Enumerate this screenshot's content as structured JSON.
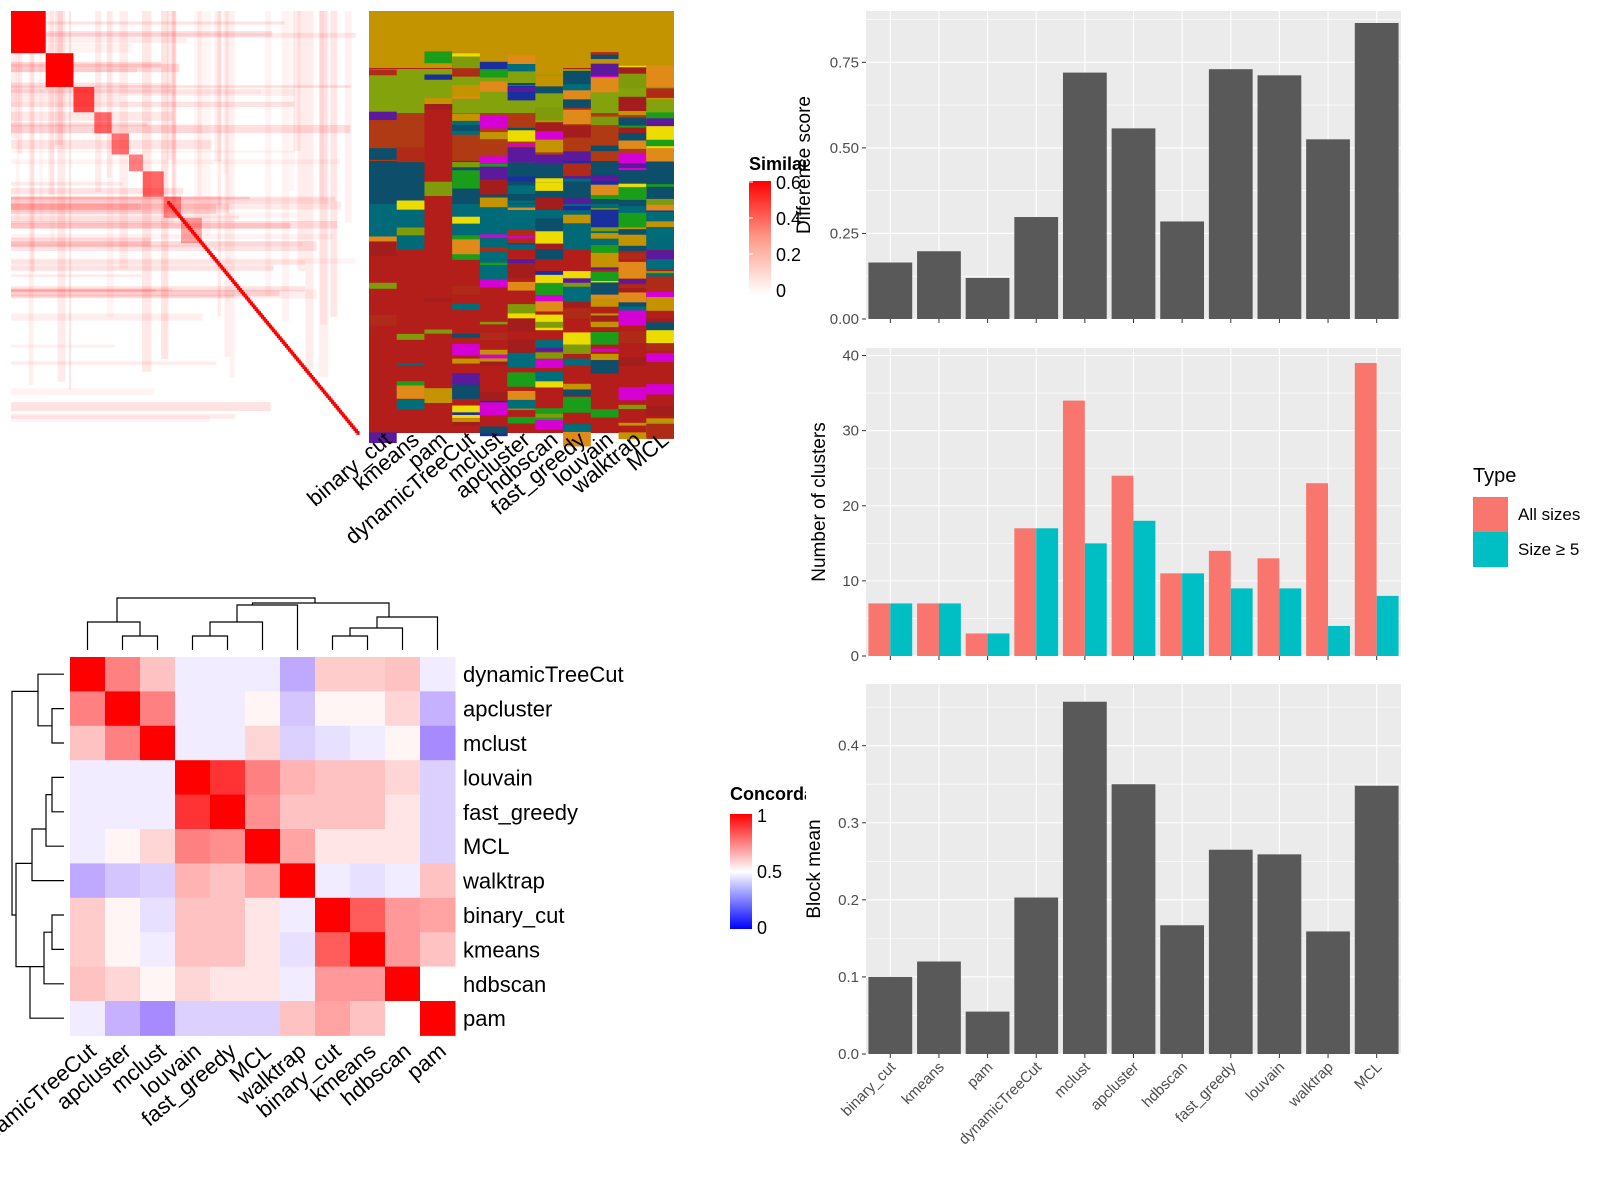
{
  "colors": {
    "panel_bg": "#ebebeb",
    "grid": "#ffffff",
    "bar": "#595959",
    "all_sizes": "#f8766d",
    "size_ge5": "#00bfc4",
    "heat_high": "#ff0000",
    "heat_mid": "#ffffff",
    "heat_low": "#0000ff",
    "sim_mid": "#ff8080"
  },
  "methods": [
    "binary_cut",
    "kmeans",
    "pam",
    "dynamicTreeCut",
    "mclust",
    "apcluster",
    "hdbscan",
    "fast_greedy",
    "louvain",
    "walktrap",
    "MCL"
  ],
  "similarity_legend": {
    "title": "Similarity",
    "ticks": [
      "0.6",
      "0.4",
      "0.2",
      "0"
    ]
  },
  "concordance_legend": {
    "title": "Concordance",
    "ticks": [
      "1",
      "0.5",
      "0"
    ]
  },
  "chart_data": [
    {
      "type": "heatmap",
      "name": "similarity-matrix",
      "title": "",
      "legend_title": "Similarity",
      "scale": [
        0,
        0.6
      ]
    },
    {
      "type": "heatmap",
      "name": "cluster-assignments",
      "columns": [
        "binary_cut",
        "kmeans",
        "pam",
        "dynamicTreeCut",
        "mclust",
        "apcluster",
        "hdbscan",
        "fast_greedy",
        "louvain",
        "walktrap",
        "MCL"
      ]
    },
    {
      "type": "heatmap",
      "name": "concordance-matrix",
      "legend_title": "Concordance",
      "order": [
        "dynamicTreeCut",
        "apcluster",
        "mclust",
        "louvain",
        "fast_greedy",
        "MCL",
        "walktrap",
        "binary_cut",
        "kmeans",
        "hdbscan",
        "pam"
      ],
      "values": [
        [
          1.0,
          0.75,
          0.62,
          0.45,
          0.45,
          0.45,
          0.28,
          0.6,
          0.6,
          0.62,
          0.45
        ],
        [
          0.75,
          1.0,
          0.75,
          0.45,
          0.45,
          0.52,
          0.35,
          0.52,
          0.52,
          0.58,
          0.3
        ],
        [
          0.62,
          0.75,
          1.0,
          0.45,
          0.45,
          0.58,
          0.38,
          0.42,
          0.45,
          0.52,
          0.2
        ],
        [
          0.45,
          0.45,
          0.45,
          1.0,
          0.9,
          0.75,
          0.65,
          0.62,
          0.62,
          0.58,
          0.38
        ],
        [
          0.45,
          0.45,
          0.45,
          0.9,
          1.0,
          0.72,
          0.62,
          0.62,
          0.62,
          0.55,
          0.38
        ],
        [
          0.45,
          0.52,
          0.58,
          0.75,
          0.72,
          1.0,
          0.68,
          0.55,
          0.55,
          0.55,
          0.38
        ],
        [
          0.28,
          0.35,
          0.38,
          0.65,
          0.62,
          0.68,
          1.0,
          0.45,
          0.42,
          0.45,
          0.62
        ],
        [
          0.6,
          0.52,
          0.42,
          0.62,
          0.62,
          0.55,
          0.45,
          1.0,
          0.82,
          0.7,
          0.68
        ],
        [
          0.6,
          0.52,
          0.45,
          0.62,
          0.62,
          0.55,
          0.42,
          0.82,
          1.0,
          0.7,
          0.62
        ],
        [
          0.62,
          0.58,
          0.52,
          0.58,
          0.55,
          0.55,
          0.45,
          0.7,
          0.7,
          1.0,
          0.5
        ],
        [
          0.45,
          0.3,
          0.2,
          0.38,
          0.38,
          0.38,
          0.62,
          0.68,
          0.62,
          0.5,
          1.0
        ]
      ],
      "scale": [
        0,
        1
      ]
    },
    {
      "type": "bar",
      "name": "difference-score",
      "categories": [
        "binary_cut",
        "kmeans",
        "pam",
        "dynamicTreeCut",
        "mclust",
        "apcluster",
        "hdbscan",
        "fast_greedy",
        "louvain",
        "walktrap",
        "MCL"
      ],
      "values": [
        0.165,
        0.198,
        0.12,
        0.298,
        0.72,
        0.557,
        0.285,
        0.73,
        0.712,
        0.525,
        0.865
      ],
      "ylabel": "Difference score",
      "ylim": [
        0,
        0.9
      ],
      "yticks": [
        0.0,
        0.25,
        0.5,
        0.75
      ],
      "ytick_labels": [
        "0.00",
        "0.25",
        "0.50",
        "0.75"
      ],
      "grid": true
    },
    {
      "type": "bar",
      "name": "number-of-clusters",
      "categories": [
        "binary_cut",
        "kmeans",
        "pam",
        "dynamicTreeCut",
        "mclust",
        "apcluster",
        "hdbscan",
        "fast_greedy",
        "louvain",
        "walktrap",
        "MCL"
      ],
      "series": [
        {
          "name": "All sizes",
          "values": [
            7,
            7,
            3,
            17,
            34,
            24,
            11,
            14,
            13,
            23,
            39
          ]
        },
        {
          "name": "Size ≥ 5",
          "values": [
            7,
            7,
            3,
            17,
            15,
            18,
            11,
            9,
            9,
            4,
            8
          ]
        }
      ],
      "ylabel": "Number of clusters",
      "ylim": [
        0,
        41
      ],
      "yticks": [
        0,
        10,
        20,
        30,
        40
      ],
      "ytick_labels": [
        "0",
        "10",
        "20",
        "30",
        "40"
      ],
      "legend_title": "Type",
      "legend_position": "right",
      "grid": true
    },
    {
      "type": "bar",
      "name": "block-mean",
      "categories": [
        "binary_cut",
        "kmeans",
        "pam",
        "dynamicTreeCut",
        "mclust",
        "apcluster",
        "hdbscan",
        "fast_greedy",
        "louvain",
        "walktrap",
        "MCL"
      ],
      "values": [
        0.1,
        0.12,
        0.055,
        0.203,
        0.457,
        0.35,
        0.167,
        0.265,
        0.259,
        0.159,
        0.348
      ],
      "ylabel": "Block mean",
      "ylim": [
        0,
        0.48
      ],
      "yticks": [
        0.0,
        0.1,
        0.2,
        0.3,
        0.4
      ],
      "ytick_labels": [
        "0.0",
        "0.1",
        "0.2",
        "0.3",
        "0.4"
      ],
      "grid": true
    }
  ]
}
